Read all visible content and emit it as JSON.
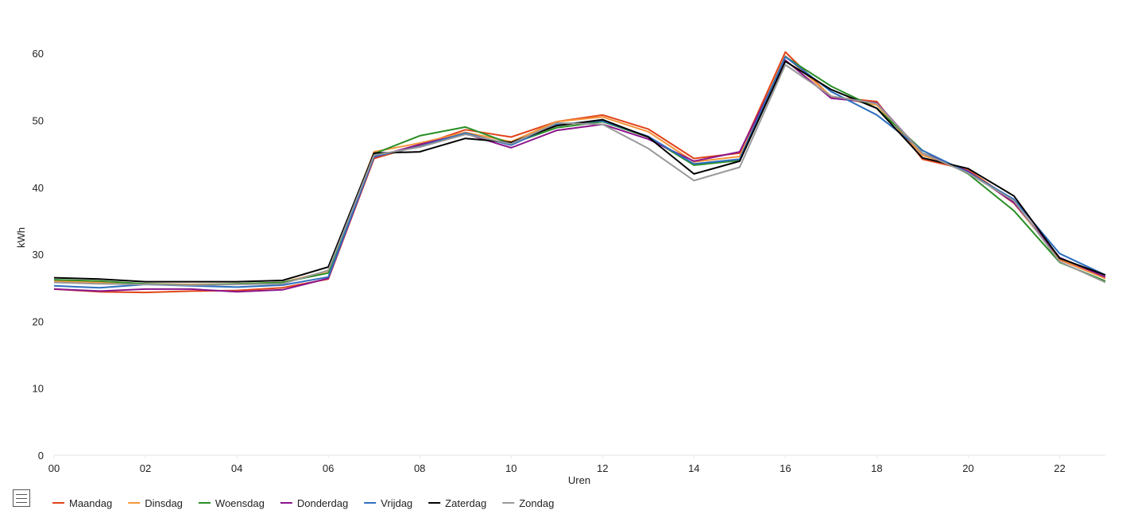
{
  "chart_data": {
    "type": "line",
    "title": "",
    "xlabel": "Uren",
    "ylabel": "kWh",
    "xlim": [
      0,
      23
    ],
    "ylim": [
      0,
      65
    ],
    "x_ticks": [
      "00",
      "02",
      "04",
      "06",
      "08",
      "10",
      "12",
      "14",
      "16",
      "18",
      "20",
      "22"
    ],
    "y_ticks": [
      0,
      10,
      20,
      30,
      40,
      50,
      60
    ],
    "legend_position": "bottom-left",
    "x": [
      0,
      1,
      2,
      3,
      4,
      5,
      6,
      7,
      8,
      9,
      10,
      11,
      12,
      13,
      14,
      15,
      16,
      17,
      18,
      19,
      20,
      21,
      22,
      23
    ],
    "series": [
      {
        "name": "Maandag",
        "color": "#E0441A",
        "values": [
          24.8,
          24.4,
          24.3,
          24.5,
          24.6,
          25.0,
          26.3,
          44.3,
          46.3,
          48.6,
          47.5,
          49.8,
          50.8,
          48.7,
          44.3,
          45.1,
          60.2,
          53.5,
          52.8,
          44.2,
          42.6,
          37.9,
          29.2,
          26.4
        ]
      },
      {
        "name": "Dinsdag",
        "color": "#F5953A",
        "values": [
          26.0,
          25.8,
          25.6,
          25.5,
          25.6,
          25.8,
          27.5,
          45.3,
          46.6,
          48.2,
          46.8,
          49.8,
          50.5,
          48.3,
          43.8,
          44.6,
          59.6,
          53.6,
          52.3,
          44.8,
          42.5,
          37.6,
          29.3,
          26.4
        ]
      },
      {
        "name": "Woensdag",
        "color": "#2A8E26",
        "values": [
          26.2,
          26.0,
          25.6,
          25.4,
          25.6,
          25.8,
          27.2,
          45.0,
          47.7,
          49.0,
          46.5,
          48.9,
          49.8,
          47.5,
          43.3,
          44.0,
          59.5,
          55.1,
          51.8,
          45.5,
          42.0,
          36.5,
          28.8,
          26.0
        ]
      },
      {
        "name": "Donderdag",
        "color": "#8B148B",
        "values": [
          24.8,
          24.5,
          24.8,
          24.8,
          24.4,
          24.7,
          26.4,
          44.5,
          46.4,
          48.0,
          45.9,
          48.5,
          49.4,
          47.2,
          43.9,
          45.3,
          59.0,
          53.3,
          52.6,
          45.1,
          42.4,
          37.7,
          29.5,
          26.6
        ]
      },
      {
        "name": "Vrijdag",
        "color": "#2E6FBE",
        "values": [
          25.3,
          25.0,
          25.5,
          25.3,
          25.1,
          25.4,
          26.6,
          44.6,
          46.1,
          48.1,
          46.3,
          49.4,
          49.9,
          47.6,
          43.5,
          44.2,
          59.5,
          54.3,
          50.8,
          45.5,
          42.2,
          38.2,
          30.1,
          26.9
        ]
      },
      {
        "name": "Zaterdag",
        "color": "#000000",
        "values": [
          26.5,
          26.3,
          25.9,
          25.9,
          25.9,
          26.1,
          28.1,
          45.1,
          45.3,
          47.3,
          46.7,
          49.2,
          50.1,
          47.5,
          42.0,
          43.9,
          58.8,
          54.6,
          51.8,
          44.4,
          42.8,
          38.7,
          29.4,
          26.9
        ]
      },
      {
        "name": "Zondag",
        "color": "#999999",
        "values": [
          25.8,
          25.6,
          25.5,
          25.4,
          25.5,
          25.6,
          27.6,
          44.8,
          46.0,
          47.9,
          46.5,
          49.6,
          49.4,
          45.8,
          41.0,
          43.0,
          58.3,
          53.6,
          52.5,
          45.1,
          42.1,
          38.0,
          28.9,
          25.8
        ]
      }
    ]
  },
  "ui": {
    "menu_icon": "hamburger-menu-icon"
  }
}
